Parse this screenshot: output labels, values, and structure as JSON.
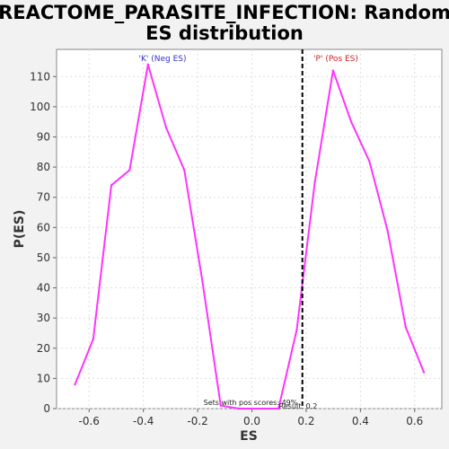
{
  "title_line1": "REACTOME_PARASITE_INFECTION: Random",
  "title_line2": "ES distribution",
  "colors": {
    "line": "#ff33ff",
    "neg_label": "#3333cc",
    "pos_label": "#cc2222",
    "background": "#f2f2f2",
    "plot_bg": "#ffffff",
    "grid": "#dddddd"
  },
  "chart_data": {
    "type": "line",
    "xlabel": "ES",
    "ylabel": "P(ES)",
    "xlim": [
      -0.72,
      0.7
    ],
    "ylim": [
      0,
      119
    ],
    "xticks": [
      -0.6,
      -0.4,
      -0.2,
      0.0,
      0.2,
      0.4,
      0.6
    ],
    "xtick_labels": [
      "-0.6",
      "-0.4",
      "-0.2",
      "0.0",
      "0.2",
      "0.4",
      "0.6"
    ],
    "yticks": [
      0,
      10,
      20,
      30,
      40,
      50,
      60,
      70,
      80,
      90,
      100,
      110
    ],
    "ytick_labels": [
      "0",
      "10",
      "20",
      "30",
      "40",
      "50",
      "60",
      "70",
      "80",
      "90",
      "100",
      "110"
    ],
    "grid": true,
    "series": [
      {
        "x": [
          -0.652,
          -0.585,
          -0.518,
          -0.451,
          -0.383,
          -0.316,
          -0.249,
          -0.182,
          -0.115,
          -0.048,
          0.0,
          0.098,
          0.165,
          0.232,
          0.299,
          0.366,
          0.433,
          0.5,
          0.567,
          0.634
        ],
        "y": [
          8,
          23,
          74,
          79,
          114,
          93,
          79,
          42,
          1,
          0,
          0,
          0,
          26,
          75,
          112,
          95,
          82,
          59,
          27,
          12
        ]
      }
    ],
    "vline": {
      "x": 0.186,
      "style": "dashed"
    },
    "annotations": {
      "neg": "'K' (Neg ES)",
      "pos": "'P' (Pos ES)",
      "sets_text": "Sets with pos scores: 49%",
      "result_text": "Result: 0.2"
    }
  }
}
